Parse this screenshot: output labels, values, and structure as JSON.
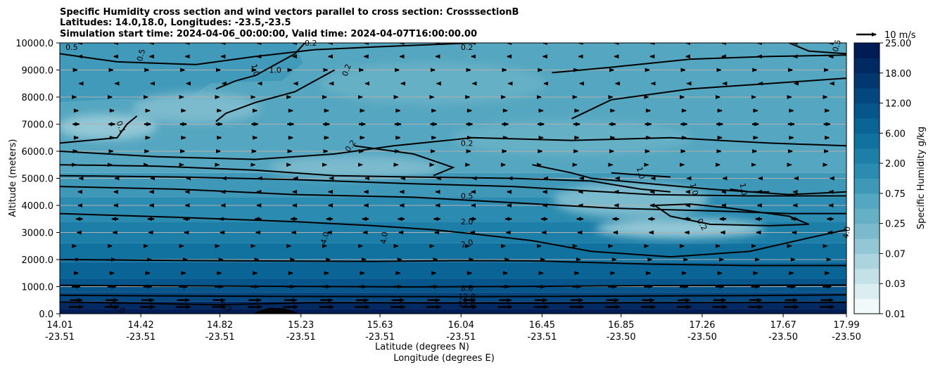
{
  "chart_data": {
    "type": "heatmap",
    "title": [
      "Specific Humidity cross section and wind vectors parallel to cross section: CrosssectionB",
      "Latitudes: 14.0,18.0, Longitudes: -23.5,-23.5",
      "Simulation start time: 2024-04-06_00:00:00, Valid time: 2024-04-07T16:00:00.00"
    ],
    "xlabel": [
      "Latitude (degrees N)",
      "Longitude (degrees E)"
    ],
    "ylabel": "Altitude (meters)",
    "x_ticks": [
      {
        "lat": "14.01",
        "lon": "-23.51"
      },
      {
        "lat": "14.42",
        "lon": "-23.51"
      },
      {
        "lat": "14.82",
        "lon": "-23.51"
      },
      {
        "lat": "15.23",
        "lon": "-23.51"
      },
      {
        "lat": "15.63",
        "lon": "-23.51"
      },
      {
        "lat": "16.04",
        "lon": "-23.51"
      },
      {
        "lat": "16.45",
        "lon": "-23.51"
      },
      {
        "lat": "16.85",
        "lon": "-23.50"
      },
      {
        "lat": "17.26",
        "lon": "-23.50"
      },
      {
        "lat": "17.67",
        "lon": "-23.50"
      },
      {
        "lat": "17.99",
        "lon": "-23.50"
      }
    ],
    "xlim": [
      14.01,
      17.99
    ],
    "y_ticks": [
      "0.0",
      "1000.0",
      "2000.0",
      "3000.0",
      "4000.0",
      "5000.0",
      "6000.0",
      "7000.0",
      "8000.0",
      "9000.0",
      "10000.0"
    ],
    "ylim": [
      0,
      10000
    ],
    "grid": "horizontal",
    "colorbar": {
      "label": "Specific Humidity g/kg",
      "tick_labels": [
        "0.01",
        "0.03",
        "0.07",
        "0.25",
        "0.75",
        "2.00",
        "6.00",
        "12.00",
        "18.00",
        "25.00"
      ],
      "levels": [
        0.01,
        0.02,
        0.03,
        0.05,
        0.07,
        0.1,
        0.25,
        0.5,
        0.75,
        1.0,
        2.0,
        4.0,
        6.0,
        8.0,
        12.0,
        16.0,
        18.0,
        20.0,
        25.0
      ],
      "colors": [
        "#f2f9fa",
        "#dcedf1",
        "#c4e1e8",
        "#acd4de",
        "#93c7d5",
        "#7bbacd",
        "#66b0c6",
        "#55a6c0",
        "#3f98b8",
        "#2b8bb0",
        "#1d7fa8",
        "#12729f",
        "#0a6496",
        "#06558b",
        "#04467e",
        "#033770",
        "#022a62",
        "#011c54"
      ]
    },
    "contour_levels": [
      0.1,
      0.2,
      0.5,
      1.0,
      2.0,
      4.0,
      8.0,
      12.0
    ],
    "contour_label_texts": [
      "0.5",
      "0.5",
      "0.2",
      "1.0",
      "1.0",
      "0.2",
      "0.2",
      "0.1",
      "0.2",
      "0.2",
      "1.0",
      "1.0",
      "1.0",
      "0.2",
      "0.5",
      "2.0",
      "2.0",
      "4.0",
      "4.0",
      "4.0",
      "8.0",
      "12.0",
      "12.0",
      "12.0",
      "0.2",
      "0.5"
    ],
    "terrain": {
      "latitude": 15.1,
      "peak_altitude_m": 200
    },
    "quiver_key": {
      "label": "10 m/s",
      "speed_ms": 10
    },
    "wind_profile": {
      "altitude_m": [
        250,
        500,
        1000,
        1500,
        2000,
        2500,
        3000,
        3500,
        4000,
        4500,
        5000,
        5500,
        6000,
        6500,
        7000,
        7500,
        8000,
        8500,
        9000,
        9500,
        10000
      ],
      "u_ms": [
        9,
        8,
        6,
        4,
        1,
        2,
        -4,
        -5,
        -3,
        -3,
        -2,
        2,
        3,
        4,
        5,
        4,
        2,
        -2,
        3,
        -3,
        -3
      ]
    }
  }
}
